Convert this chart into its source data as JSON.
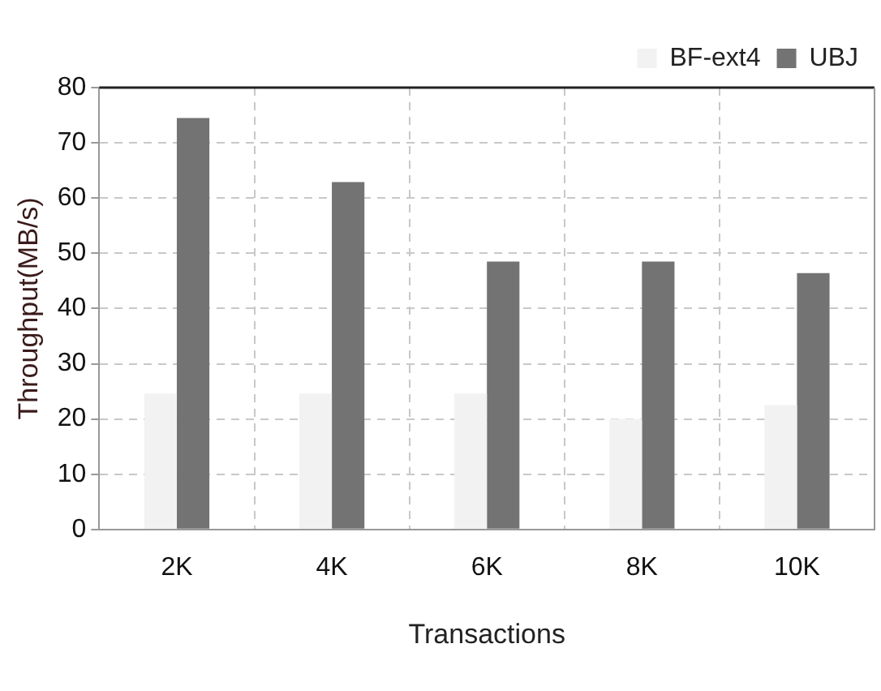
{
  "chart_data": {
    "type": "bar",
    "xlabel": "Transactions",
    "ylabel": "Throughput(MB/s)",
    "categories": [
      "2K",
      "4K",
      "6K",
      "8K",
      "10K"
    ],
    "series": [
      {
        "name": "BF-ext4",
        "color": "#f2f2f2",
        "values": [
          24.6,
          24.6,
          24.6,
          20,
          22.5
        ]
      },
      {
        "name": "UBJ",
        "color": "#737373",
        "values": [
          74.5,
          62.9,
          48.5,
          48.5,
          46.4
        ]
      }
    ],
    "ylim": [
      0,
      80
    ],
    "yticks": [
      0,
      10,
      20,
      30,
      40,
      50,
      60,
      70,
      80
    ],
    "grid": true,
    "legend": "top right"
  }
}
